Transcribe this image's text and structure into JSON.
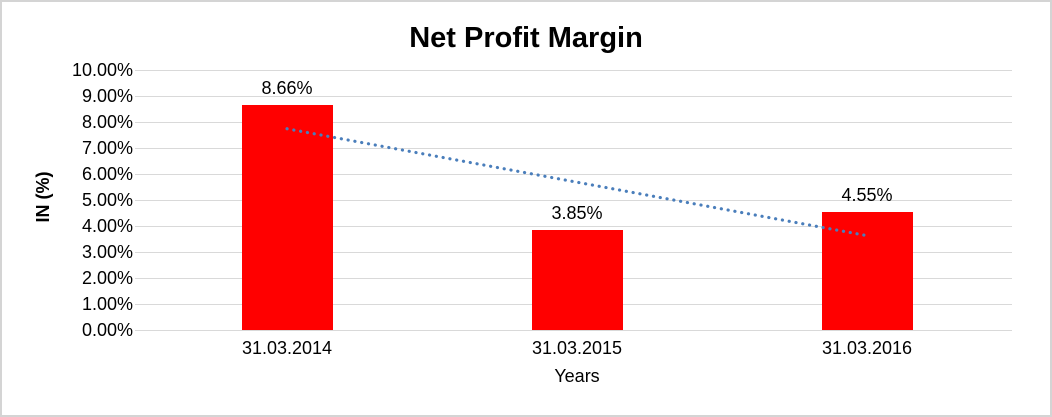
{
  "window": {
    "background": "#ffffff",
    "border_color": "#d4d4d4"
  },
  "chart_data": {
    "type": "bar",
    "title": "Net Profit Margin",
    "categories": [
      "31.03.2014",
      "31.03.2015",
      "31.03.2016"
    ],
    "series": [
      {
        "name": "Net Profit Margin",
        "values": [
          8.66,
          3.85,
          4.55
        ],
        "data_labels": [
          "8.66%",
          "3.85%",
          "4.55%"
        ],
        "color": "#ff0000"
      }
    ],
    "xlabel": "Years",
    "ylabel": "IN (%)",
    "ylim": [
      0,
      10
    ],
    "ytick_labels": [
      "0.00%",
      "1.00%",
      "2.00%",
      "3.00%",
      "4.00%",
      "5.00%",
      "6.00%",
      "7.00%",
      "8.00%",
      "9.00%",
      "10.00%"
    ],
    "grid": true,
    "gridline_color": "#d9d9d9",
    "legend": "none",
    "trendline": {
      "type": "linear",
      "style": "dotted",
      "color": "#4a7ebb",
      "start_value": 7.74,
      "end_value": 3.63,
      "start_category_index": 0,
      "end_category_index": 2
    }
  }
}
